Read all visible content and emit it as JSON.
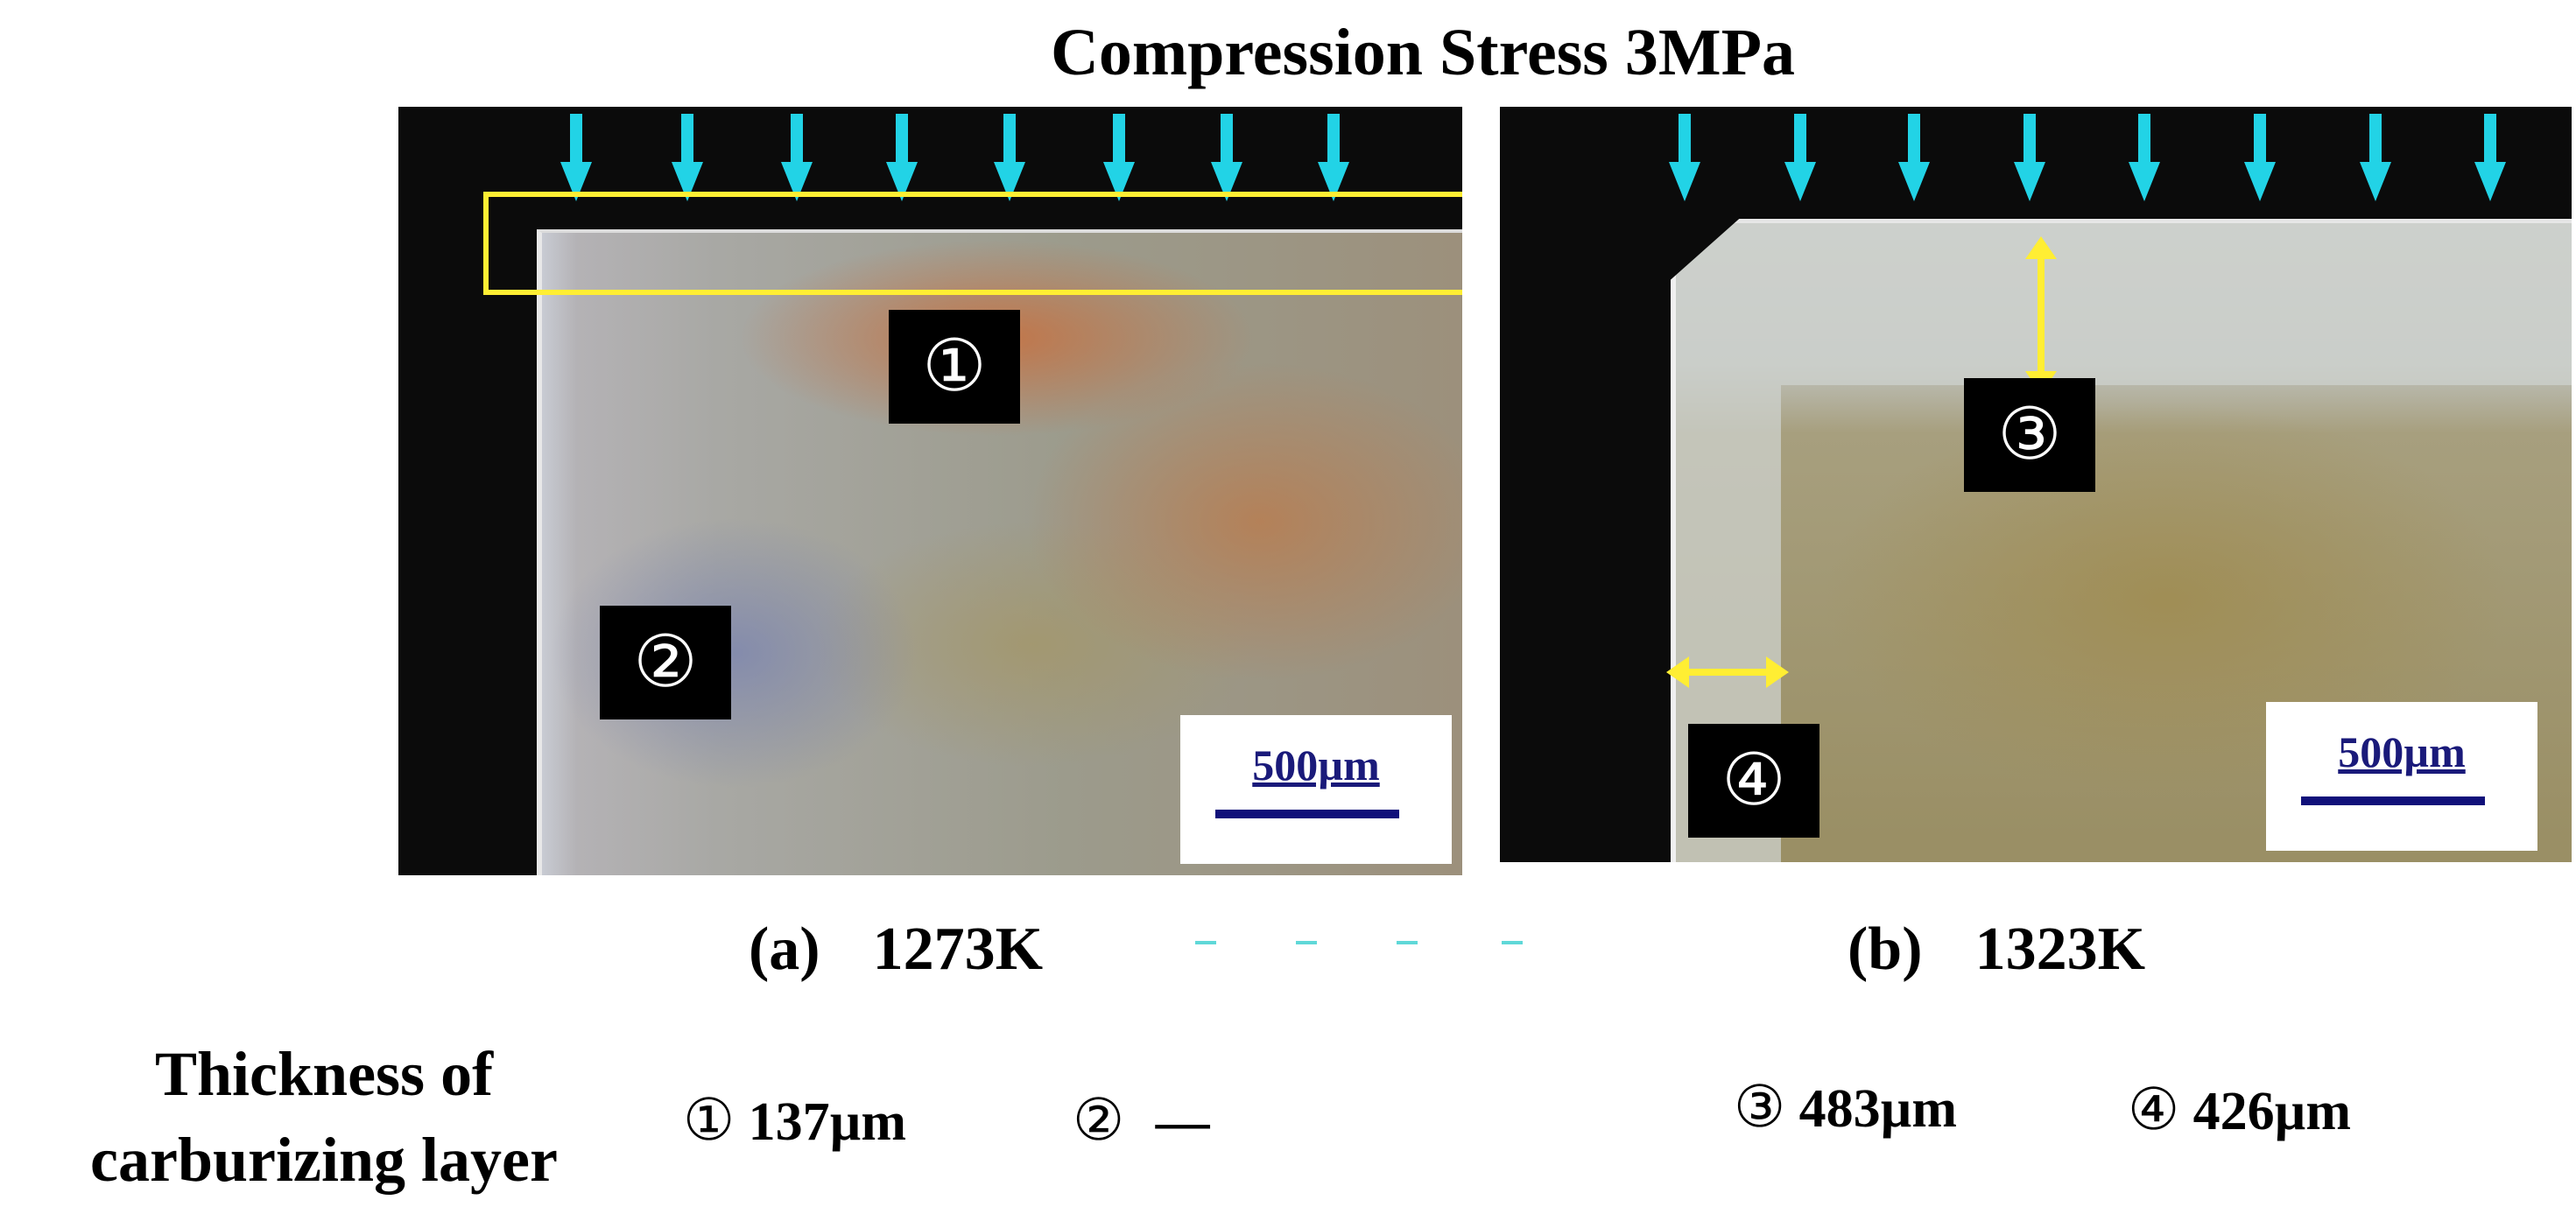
{
  "figure": {
    "title": "Compression Stress 3MPa",
    "panels": [
      {
        "id": "a",
        "caption_letter": "(a)",
        "caption_temp": "1273K",
        "markers": [
          "①",
          "②"
        ],
        "scale_label": "500µm"
      },
      {
        "id": "b",
        "caption_letter": "(b)",
        "caption_temp": "1323K",
        "markers": [
          "③",
          "④"
        ],
        "scale_label": "500µm"
      }
    ],
    "thickness": {
      "label_line1": "Thickness of",
      "label_line2": "carburizing layer",
      "items": [
        {
          "marker": "①",
          "value": "137µm"
        },
        {
          "marker": "②",
          "value": "—"
        },
        {
          "marker": "③",
          "value": "483µm"
        },
        {
          "marker": "④",
          "value": "426µm"
        }
      ]
    },
    "colors": {
      "arrow": "#22d3e6",
      "highlight": "#ffee33",
      "scale_bar": "#10107a"
    }
  }
}
